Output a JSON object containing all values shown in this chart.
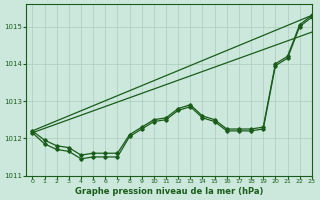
{
  "xlabel": "Graphe pression niveau de la mer (hPa)",
  "xlim": [
    -0.5,
    23
  ],
  "ylim": [
    1011.0,
    1015.6
  ],
  "yticks": [
    1011,
    1012,
    1013,
    1014,
    1015
  ],
  "xticks": [
    0,
    1,
    2,
    3,
    4,
    5,
    6,
    7,
    8,
    9,
    10,
    11,
    12,
    13,
    14,
    15,
    16,
    17,
    18,
    19,
    20,
    21,
    22,
    23
  ],
  "background_color": "#cce8dc",
  "grid_color": "#aaccbb",
  "line_color": "#1a5c1a",
  "series_marked1": {
    "x": [
      0,
      1,
      2,
      3,
      4,
      5,
      6,
      7,
      8,
      9,
      10,
      11,
      12,
      13,
      14,
      15,
      16,
      17,
      18,
      19,
      20,
      21,
      22,
      23
    ],
    "y": [
      1012.2,
      1011.95,
      1011.8,
      1011.75,
      1011.55,
      1011.6,
      1011.6,
      1011.6,
      1012.1,
      1012.3,
      1012.5,
      1012.55,
      1012.8,
      1012.9,
      1012.6,
      1012.5,
      1012.25,
      1012.25,
      1012.25,
      1012.3,
      1014.0,
      1014.2,
      1015.05,
      1015.3
    ]
  },
  "series_marked2": {
    "x": [
      0,
      1,
      2,
      3,
      4,
      5,
      6,
      7,
      8,
      9,
      10,
      11,
      12,
      13,
      14,
      15,
      16,
      17,
      18,
      19,
      20,
      21,
      22,
      23
    ],
    "y": [
      1012.15,
      1011.85,
      1011.7,
      1011.65,
      1011.45,
      1011.5,
      1011.5,
      1011.5,
      1012.05,
      1012.25,
      1012.45,
      1012.5,
      1012.75,
      1012.85,
      1012.55,
      1012.45,
      1012.2,
      1012.2,
      1012.2,
      1012.25,
      1013.95,
      1014.15,
      1015.0,
      1015.25
    ]
  },
  "series_smooth1": {
    "x": [
      0,
      23
    ],
    "y": [
      1012.2,
      1015.3
    ]
  },
  "series_smooth2": {
    "x": [
      0,
      23
    ],
    "y": [
      1012.15,
      1014.85
    ]
  }
}
